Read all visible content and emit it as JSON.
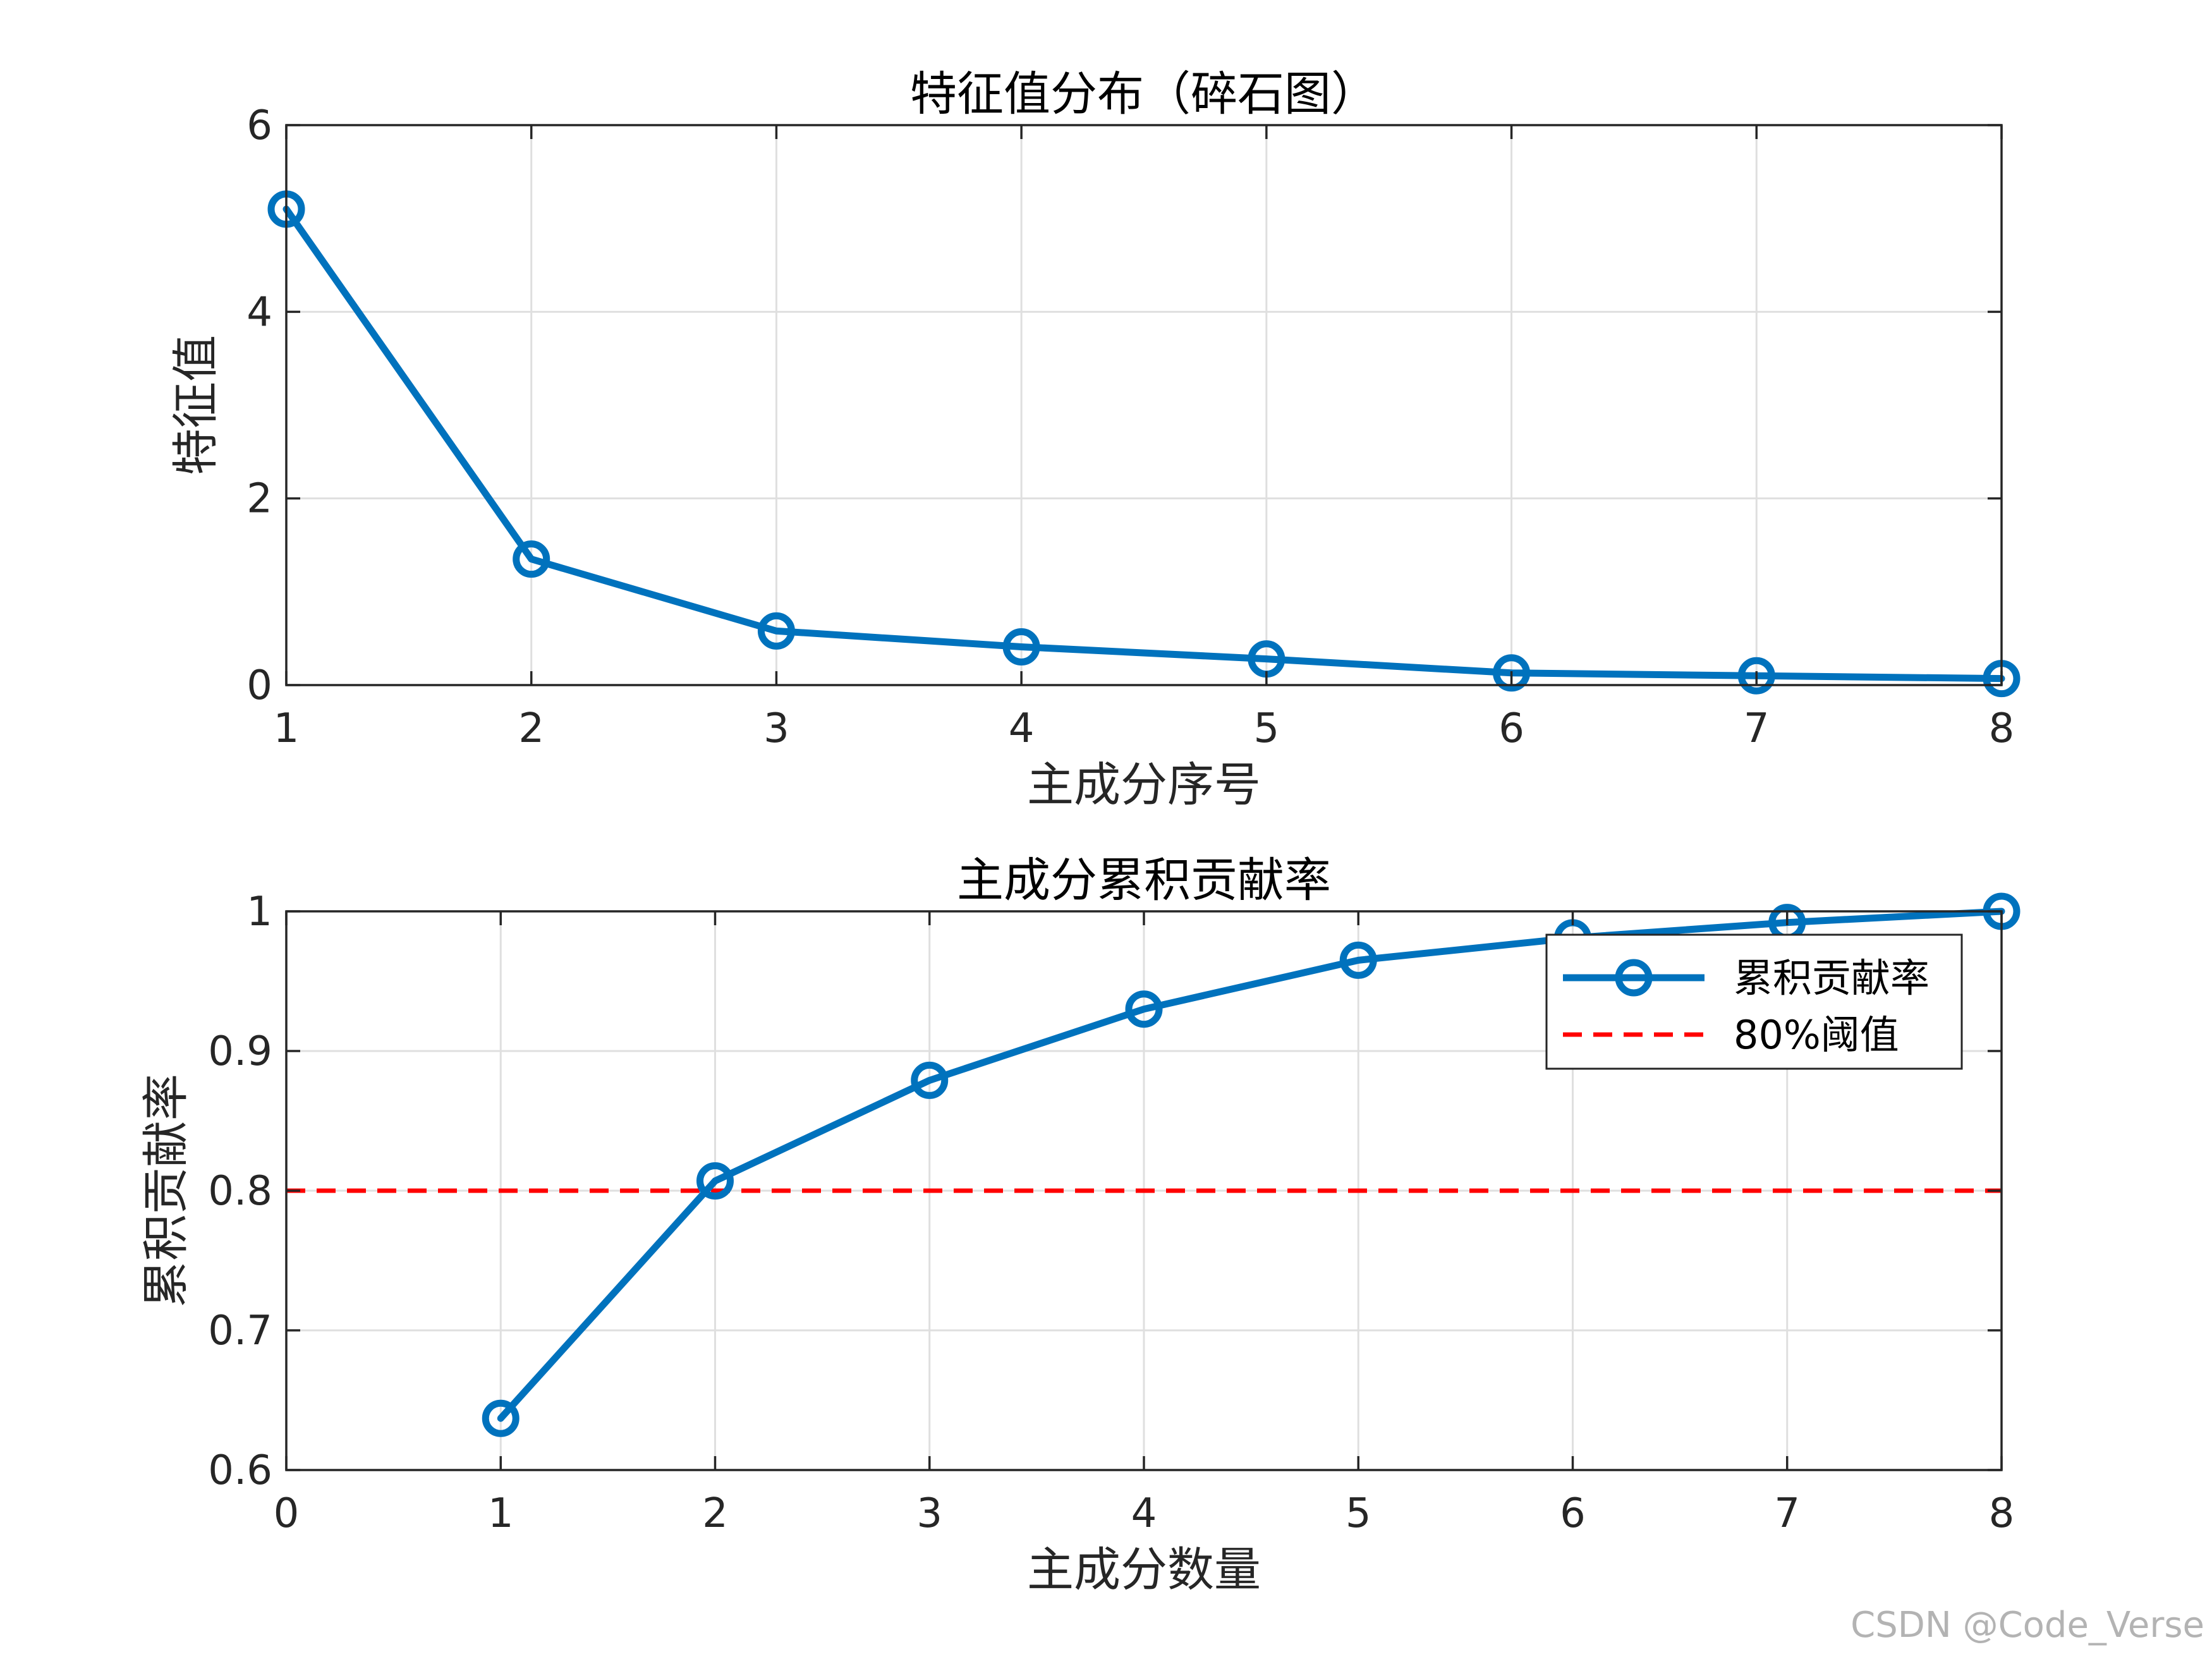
{
  "colors": {
    "series": "#0072BD",
    "threshold": "#FF0000",
    "axis": "#262626",
    "grid": "#DFDFDF"
  },
  "watermark": "CSDN @Code_Verse",
  "chart_data": [
    {
      "type": "line",
      "title": "特征值分布（碎石图）",
      "xlabel": "主成分序号",
      "ylabel": "特征值",
      "xlim": [
        1,
        8
      ],
      "ylim": [
        0,
        6
      ],
      "xticks": [
        "1",
        "2",
        "3",
        "4",
        "5",
        "6",
        "7",
        "8"
      ],
      "yticks": [
        "0",
        "2",
        "4",
        "6"
      ],
      "grid": true,
      "x": [
        1,
        2,
        3,
        4,
        5,
        6,
        7,
        8
      ],
      "series": [
        {
          "values": [
            5.1,
            1.35,
            0.58,
            0.41,
            0.28,
            0.13,
            0.1,
            0.07
          ],
          "marker": "circle",
          "color": "#0072BD"
        }
      ]
    },
    {
      "type": "line",
      "title": "主成分累积贡献率",
      "xlabel": "主成分数量",
      "ylabel": "累积贡献率",
      "xlim": [
        0,
        8
      ],
      "ylim": [
        0.6,
        1
      ],
      "xticks": [
        "0",
        "1",
        "2",
        "3",
        "4",
        "5",
        "6",
        "7",
        "8"
      ],
      "yticks": [
        "0.6",
        "0.7",
        "0.8",
        "0.9",
        "1"
      ],
      "grid": true,
      "legend_position": "top-right",
      "x": [
        1,
        2,
        3,
        4,
        5,
        6,
        7,
        8
      ],
      "series": [
        {
          "name": "累积贡献率",
          "values": [
            0.637,
            0.807,
            0.879,
            0.93,
            0.965,
            0.981,
            0.992,
            1.0
          ],
          "marker": "circle",
          "color": "#0072BD"
        }
      ],
      "reference_lines": [
        {
          "name": "80%阈值",
          "y": 0.8,
          "style": "dashed",
          "color": "#FF0000"
        }
      ]
    }
  ]
}
